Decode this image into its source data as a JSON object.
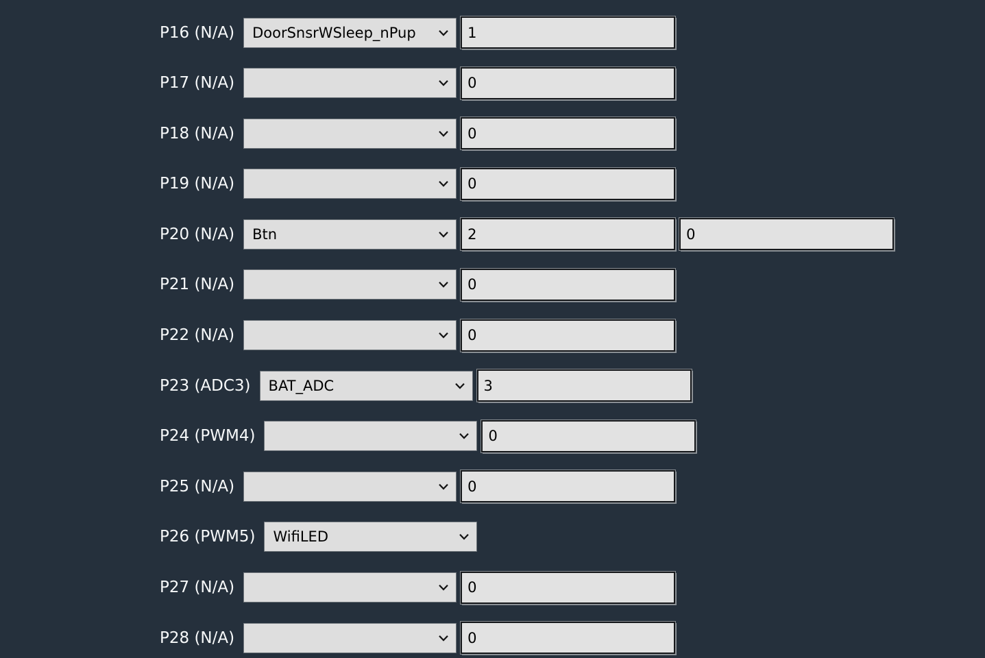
{
  "theme": {
    "background": "#25303c",
    "control_fill": "#dedede",
    "input_fill": "#e2e2e2",
    "control_text": "#000000",
    "label_color": "#f7f9fa"
  },
  "pin_rows": [
    {
      "pin": "P16",
      "mode": "N/A",
      "label": "P16 (N/A)",
      "role_selected": "DoorSnsrWSleep_nPup",
      "channels": [
        "1"
      ]
    },
    {
      "pin": "P17",
      "mode": "N/A",
      "label": "P17 (N/A)",
      "role_selected": "",
      "channels": [
        "0"
      ]
    },
    {
      "pin": "P18",
      "mode": "N/A",
      "label": "P18 (N/A)",
      "role_selected": "",
      "channels": [
        "0"
      ]
    },
    {
      "pin": "P19",
      "mode": "N/A",
      "label": "P19 (N/A)",
      "role_selected": "",
      "channels": [
        "0"
      ]
    },
    {
      "pin": "P20",
      "mode": "N/A",
      "label": "P20 (N/A)",
      "role_selected": "Btn",
      "channels": [
        "2",
        "0"
      ]
    },
    {
      "pin": "P21",
      "mode": "N/A",
      "label": "P21 (N/A)",
      "role_selected": "",
      "channels": [
        "0"
      ]
    },
    {
      "pin": "P22",
      "mode": "N/A",
      "label": "P22 (N/A)",
      "role_selected": "",
      "channels": [
        "0"
      ]
    },
    {
      "pin": "P23",
      "mode": "ADC3",
      "label": "P23 (ADC3)",
      "role_selected": "BAT_ADC",
      "channels": [
        "3"
      ]
    },
    {
      "pin": "P24",
      "mode": "PWM4",
      "label": "P24 (PWM4)",
      "role_selected": "",
      "channels": [
        "0"
      ]
    },
    {
      "pin": "P25",
      "mode": "N/A",
      "label": "P25 (N/A)",
      "role_selected": "",
      "channels": [
        "0"
      ]
    },
    {
      "pin": "P26",
      "mode": "PWM5",
      "label": "P26 (PWM5)",
      "role_selected": "WifiLED",
      "channels": []
    },
    {
      "pin": "P27",
      "mode": "N/A",
      "label": "P27 (N/A)",
      "role_selected": "",
      "channels": [
        "0"
      ]
    },
    {
      "pin": "P28",
      "mode": "N/A",
      "label": "P28 (N/A)",
      "role_selected": "",
      "channels": [
        "0"
      ]
    }
  ]
}
